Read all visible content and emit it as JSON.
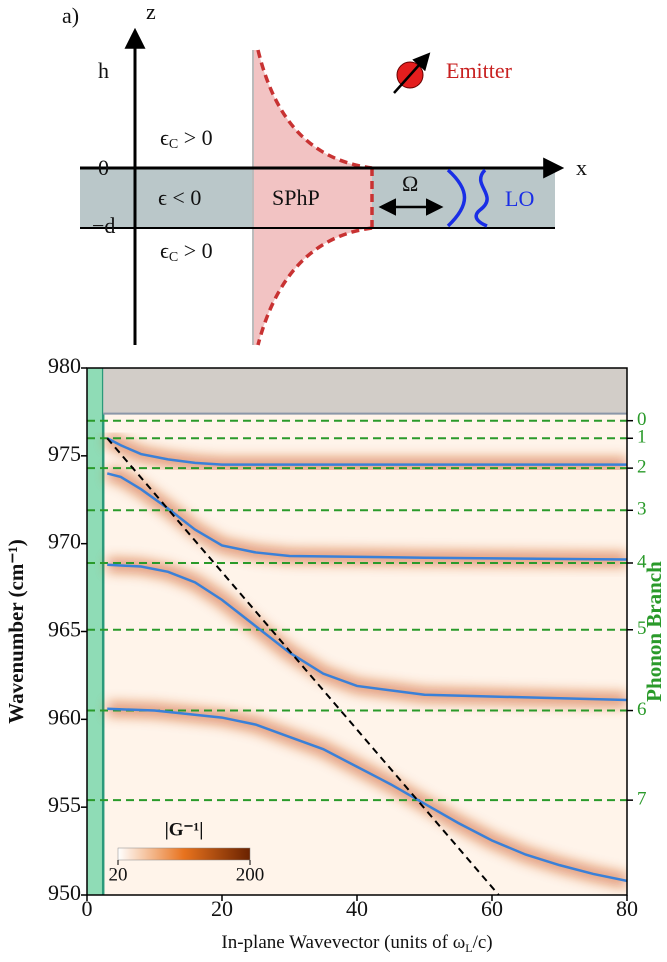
{
  "diagram": {
    "panel_label": "a)",
    "z_axis": "z",
    "x_axis": "x",
    "h": "h",
    "zero": "0",
    "minus_d": "−d",
    "eps_c_top": [
      "ϵ",
      "C",
      " > 0"
    ],
    "eps_c_bottom": [
      "ϵ",
      "C",
      " > 0"
    ],
    "eps_slab": "ϵ < 0",
    "sphp": "SPhP",
    "omega": "Ω",
    "lo": "LO",
    "emitter": "Emitter"
  },
  "chart_data": {
    "type": "line",
    "x_label": [
      "In-plane Wavevector (units of ω",
      "L",
      "/c)"
    ],
    "y_label": "Wavenumber (cm⁻¹)",
    "y2_label": "Phonon Branch",
    "xlim": [
      0,
      80
    ],
    "xticks": [
      0,
      20,
      40,
      60,
      80
    ],
    "ylim": [
      950,
      980
    ],
    "yticks": [
      950,
      955,
      960,
      965,
      970,
      975,
      980
    ],
    "series": [
      {
        "color": "#3a80d8",
        "x": [
          3,
          5,
          8,
          12,
          16,
          20,
          30,
          50,
          80
        ],
        "values": [
          976.0,
          975.6,
          975.1,
          974.8,
          974.6,
          974.5,
          974.5,
          974.5,
          974.5
        ]
      },
      {
        "color": "#3a80d8",
        "x": [
          3,
          5,
          8,
          12,
          16,
          20,
          25,
          30,
          50,
          80
        ],
        "values": [
          974.0,
          973.8,
          973.1,
          972.0,
          970.8,
          969.9,
          969.5,
          969.3,
          969.2,
          969.1
        ]
      },
      {
        "color": "#3a80d8",
        "x": [
          3,
          8,
          12,
          16,
          20,
          25,
          30,
          35,
          40,
          50,
          80
        ],
        "values": [
          968.8,
          968.7,
          968.4,
          967.8,
          966.8,
          965.3,
          963.8,
          962.6,
          961.9,
          961.4,
          961.1
        ]
      },
      {
        "color": "#3a80d8",
        "x": [
          3,
          10,
          20,
          25,
          30,
          35,
          40,
          45,
          50,
          55,
          60,
          65,
          70,
          75,
          80
        ],
        "values": [
          960.6,
          960.5,
          960.1,
          959.7,
          959.0,
          958.3,
          957.3,
          956.3,
          955.2,
          954.1,
          953.1,
          952.3,
          951.7,
          951.2,
          950.8
        ]
      }
    ],
    "light_line": {
      "color": "#000000",
      "x": [
        3,
        61
      ],
      "values": [
        976.0,
        950
      ]
    },
    "phonon_branches": {
      "color": "#2a9a2a",
      "ticks": [
        {
          "value": 977.0,
          "label": "0"
        },
        {
          "value": 976.0,
          "label": "1"
        },
        {
          "value": 974.3,
          "label": "2"
        },
        {
          "value": 971.9,
          "label": "3"
        },
        {
          "value": 968.9,
          "label": "4"
        },
        {
          "value": 965.1,
          "label": "5"
        },
        {
          "value": 960.5,
          "label": "6"
        },
        {
          "value": 955.4,
          "label": "7"
        }
      ]
    },
    "shaded_x": {
      "range": [
        0,
        2.4
      ],
      "color": "#8fdcb6"
    },
    "shaded_y": {
      "range": [
        977.4,
        980
      ],
      "color": "#d2cdc8"
    },
    "colorbar": {
      "label": "|G⁻¹|",
      "ticks": [
        20,
        200
      ],
      "colors": [
        "#ffffff",
        "#e8731e",
        "#6a2200"
      ]
    }
  }
}
